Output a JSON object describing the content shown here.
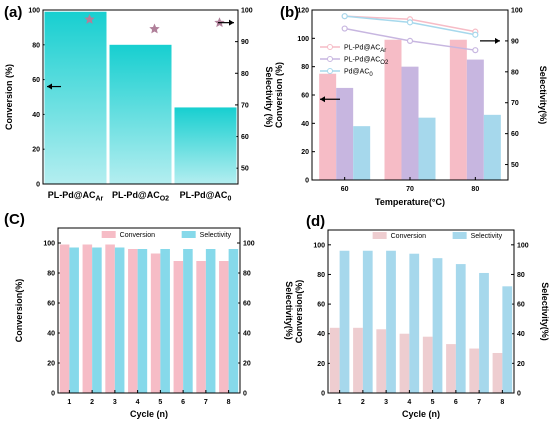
{
  "chart_data": [
    {
      "panel": "(a)",
      "type": "bar",
      "categories": [
        "PL-Pd@AC",
        "PL-Pd@AC",
        "PL-Pd@AC"
      ],
      "category_subscripts": [
        "Ar",
        "O2",
        "0"
      ],
      "series": [
        {
          "name": "Conversion",
          "axis": "left",
          "type": "bar",
          "values": [
            99,
            80,
            44
          ],
          "color": "#22d3d3"
        },
        {
          "name": "Selectivity",
          "axis": "right",
          "type": "star",
          "values": [
            97,
            94,
            96
          ],
          "color": "#b0809a"
        }
      ],
      "ylabel": "Conversion (%)",
      "ylim": [
        0,
        100
      ],
      "yticks": [
        0,
        20,
        40,
        60,
        80,
        100
      ],
      "y2label": "Selectivity (%)",
      "y2lim": [
        45,
        100
      ],
      "y2ticks": [
        50,
        60,
        70,
        80,
        90,
        100
      ]
    },
    {
      "panel": "(b)",
      "type": "bar",
      "categories": [
        "60",
        "70",
        "80"
      ],
      "series": [
        {
          "name": "PL-Pd@AC",
          "subscript": "Ar",
          "axis": "left",
          "values": [
            75,
            99,
            99
          ],
          "color": "#f6bcc6"
        },
        {
          "name": "PL-Pd@AC",
          "subscript": "O2",
          "axis": "left",
          "values": [
            65,
            80,
            85
          ],
          "color": "#c7b6e0"
        },
        {
          "name": "Pd@AC",
          "subscript": "0",
          "axis": "left",
          "values": [
            38,
            44,
            46
          ],
          "color": "#a6d8ec"
        },
        {
          "name": "PL-Pd@AC",
          "subscript": "Ar",
          "axis": "right",
          "type": "line",
          "values": [
            98,
            97,
            93
          ],
          "color": "#f6bcc6"
        },
        {
          "name": "PL-Pd@AC",
          "subscript": "O2",
          "axis": "right",
          "type": "line",
          "values": [
            94,
            90,
            87
          ],
          "color": "#c7b6e0"
        },
        {
          "name": "Pd@AC",
          "subscript": "0",
          "axis": "right",
          "type": "line",
          "values": [
            98,
            96,
            92
          ],
          "color": "#a6d8ec"
        }
      ],
      "xlabel": "Temperature(°C)",
      "ylabel": "Conversion (%)",
      "ylim": [
        0,
        120
      ],
      "yticks": [
        0,
        20,
        40,
        60,
        80,
        100,
        120
      ],
      "y2label": "Selectivity(%)",
      "y2lim": [
        45,
        100
      ],
      "y2ticks": [
        50,
        60,
        70,
        80,
        90,
        100
      ],
      "legend": "top-left"
    },
    {
      "panel": "(C)",
      "type": "bar",
      "categories": [
        "1",
        "2",
        "3",
        "4",
        "5",
        "6",
        "7",
        "8"
      ],
      "series": [
        {
          "name": "Conversion",
          "axis": "left",
          "values": [
            99,
            99,
            99,
            96,
            93,
            88,
            88,
            88
          ],
          "color": "#f6bcc6"
        },
        {
          "name": "Selectivity",
          "axis": "right",
          "values": [
            97,
            97,
            97,
            96,
            96,
            96,
            96,
            96
          ],
          "color": "#86d9ea"
        }
      ],
      "xlabel": "Cycle (n)",
      "ylabel": "Conversion(%)",
      "ylim": [
        0,
        110
      ],
      "yticks": [
        0,
        20,
        40,
        60,
        80,
        100
      ],
      "y2label": "Selectivity(%)",
      "y2lim": [
        0,
        110
      ],
      "y2ticks": [
        0,
        20,
        40,
        60,
        80,
        100
      ],
      "legend": "top"
    },
    {
      "panel": "(d)",
      "type": "bar",
      "categories": [
        "1",
        "2",
        "3",
        "4",
        "5",
        "6",
        "7",
        "8"
      ],
      "series": [
        {
          "name": "Conversion",
          "axis": "left",
          "values": [
            44,
            44,
            43,
            40,
            38,
            33,
            30,
            27
          ],
          "color": "#eecdd0"
        },
        {
          "name": "Selectivity",
          "axis": "right",
          "values": [
            96,
            96,
            96,
            94,
            91,
            87,
            81,
            72
          ],
          "color": "#a6d8ec"
        }
      ],
      "xlabel": "Cycle (n)",
      "ylabel": "Conversion(%)",
      "ylim": [
        0,
        110
      ],
      "yticks": [
        0,
        20,
        40,
        60,
        80,
        100
      ],
      "y2label": "Selectivity(%)",
      "y2lim": [
        0,
        110
      ],
      "y2ticks": [
        0,
        20,
        40,
        60,
        80,
        100
      ],
      "legend": "top"
    }
  ]
}
